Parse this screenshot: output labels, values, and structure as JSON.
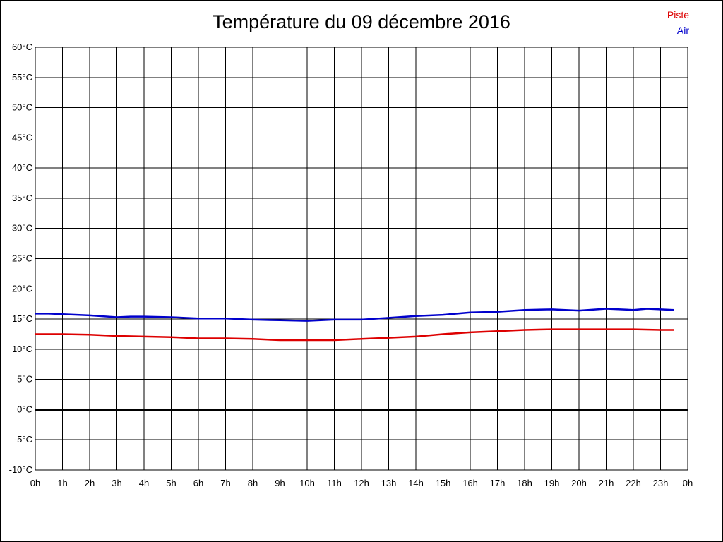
{
  "chart_data": {
    "type": "line",
    "title": "Température du 09 décembre 2016",
    "ylim": [
      -10,
      60
    ],
    "xlim": [
      0,
      24
    ],
    "y_ticks": [
      {
        "value": 60,
        "label": "60°C"
      },
      {
        "value": 55,
        "label": "55°C"
      },
      {
        "value": 50,
        "label": "50°C"
      },
      {
        "value": 45,
        "label": "45°C"
      },
      {
        "value": 40,
        "label": "40°C"
      },
      {
        "value": 35,
        "label": "35°C"
      },
      {
        "value": 30,
        "label": "30°C"
      },
      {
        "value": 25,
        "label": "25°C"
      },
      {
        "value": 20,
        "label": "20°C"
      },
      {
        "value": 15,
        "label": "15°C"
      },
      {
        "value": 10,
        "label": "10°C"
      },
      {
        "value": 5,
        "label": "5°C"
      },
      {
        "value": 0,
        "label": "0°C"
      },
      {
        "value": -5,
        "label": "-5°C"
      },
      {
        "value": -10,
        "label": "-10°C"
      }
    ],
    "x_ticks": [
      {
        "value": 0,
        "label": "0h"
      },
      {
        "value": 1,
        "label": "1h"
      },
      {
        "value": 2,
        "label": "2h"
      },
      {
        "value": 3,
        "label": "3h"
      },
      {
        "value": 4,
        "label": "4h"
      },
      {
        "value": 5,
        "label": "5h"
      },
      {
        "value": 6,
        "label": "6h"
      },
      {
        "value": 7,
        "label": "7h"
      },
      {
        "value": 8,
        "label": "8h"
      },
      {
        "value": 9,
        "label": "9h"
      },
      {
        "value": 10,
        "label": "10h"
      },
      {
        "value": 11,
        "label": "11h"
      },
      {
        "value": 12,
        "label": "12h"
      },
      {
        "value": 13,
        "label": "13h"
      },
      {
        "value": 14,
        "label": "14h"
      },
      {
        "value": 15,
        "label": "15h"
      },
      {
        "value": 16,
        "label": "16h"
      },
      {
        "value": 17,
        "label": "17h"
      },
      {
        "value": 18,
        "label": "18h"
      },
      {
        "value": 19,
        "label": "19h"
      },
      {
        "value": 20,
        "label": "20h"
      },
      {
        "value": 21,
        "label": "21h"
      },
      {
        "value": 22,
        "label": "22h"
      },
      {
        "value": 23,
        "label": "23h"
      },
      {
        "value": 24,
        "label": "0h"
      }
    ],
    "grid": true,
    "legend_position": "top-right",
    "series": [
      {
        "name": "Piste",
        "color": "#dd0000",
        "points": [
          [
            0,
            12.5
          ],
          [
            1,
            12.5
          ],
          [
            2,
            12.4
          ],
          [
            3,
            12.2
          ],
          [
            4,
            12.1
          ],
          [
            5,
            12.0
          ],
          [
            6,
            11.8
          ],
          [
            7,
            11.8
          ],
          [
            8,
            11.7
          ],
          [
            9,
            11.5
          ],
          [
            10,
            11.5
          ],
          [
            11,
            11.5
          ],
          [
            12,
            11.7
          ],
          [
            13,
            11.9
          ],
          [
            14,
            12.1
          ],
          [
            15,
            12.5
          ],
          [
            16,
            12.8
          ],
          [
            17,
            13.0
          ],
          [
            18,
            13.2
          ],
          [
            19,
            13.3
          ],
          [
            20,
            13.3
          ],
          [
            21,
            13.3
          ],
          [
            22,
            13.3
          ],
          [
            23,
            13.2
          ],
          [
            23.5,
            13.2
          ]
        ]
      },
      {
        "name": "Air",
        "color": "#0000cc",
        "points": [
          [
            0,
            15.9
          ],
          [
            0.5,
            15.9
          ],
          [
            1,
            15.8
          ],
          [
            2,
            15.6
          ],
          [
            3,
            15.3
          ],
          [
            3.5,
            15.4
          ],
          [
            4,
            15.4
          ],
          [
            5,
            15.3
          ],
          [
            6,
            15.1
          ],
          [
            7,
            15.1
          ],
          [
            8,
            14.9
          ],
          [
            9,
            14.8
          ],
          [
            10,
            14.7
          ],
          [
            11,
            14.9
          ],
          [
            12,
            14.9
          ],
          [
            13,
            15.2
          ],
          [
            14,
            15.5
          ],
          [
            15,
            15.7
          ],
          [
            16,
            16.1
          ],
          [
            17,
            16.2
          ],
          [
            18,
            16.5
          ],
          [
            19,
            16.6
          ],
          [
            20,
            16.4
          ],
          [
            21,
            16.7
          ],
          [
            22,
            16.5
          ],
          [
            22.5,
            16.7
          ],
          [
            23,
            16.6
          ],
          [
            23.5,
            16.5
          ]
        ]
      }
    ]
  }
}
